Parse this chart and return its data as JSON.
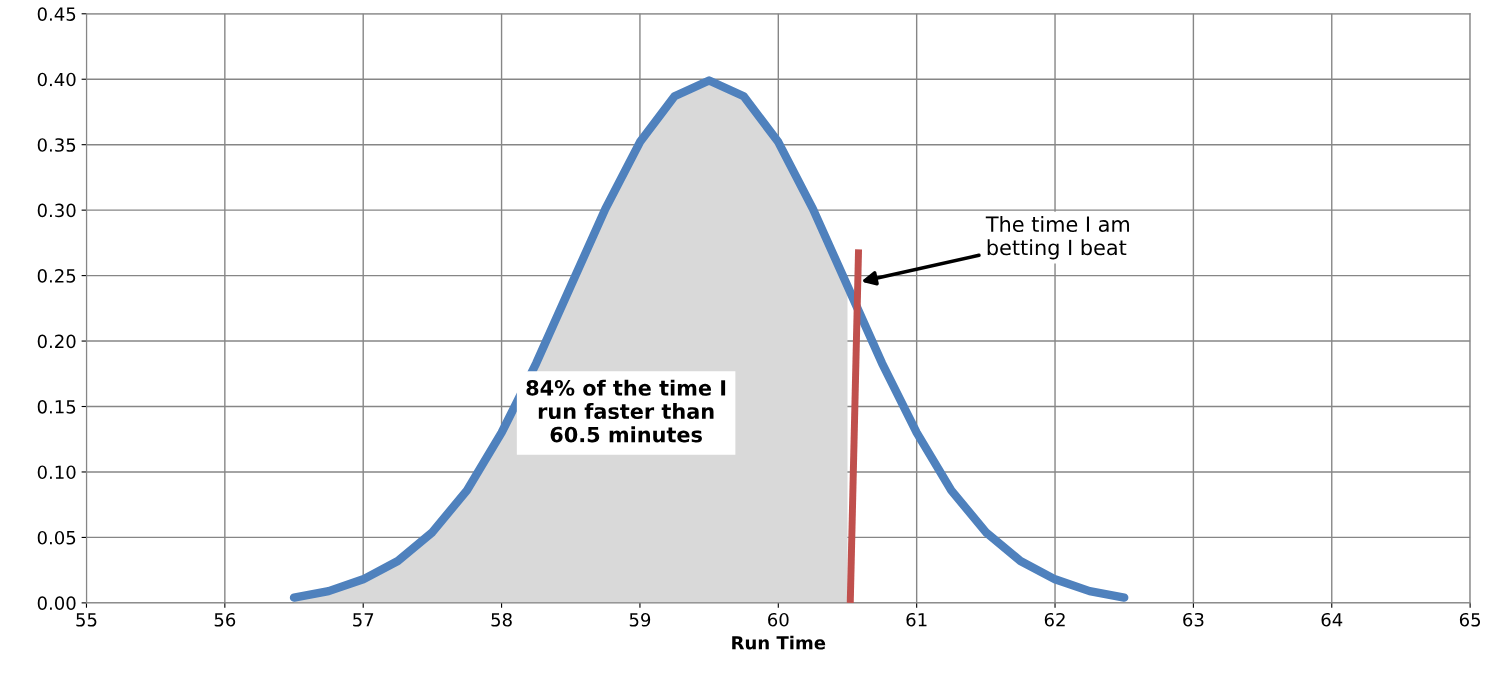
{
  "chart_data": {
    "type": "line",
    "xlabel": "Run Time",
    "xlim": [
      55,
      65
    ],
    "xticks": [
      55,
      56,
      57,
      58,
      59,
      60,
      61,
      62,
      63,
      64,
      65
    ],
    "ylim": [
      0,
      0.45
    ],
    "yticks": [
      {
        "value": 0,
        "label": "0.00"
      },
      {
        "value": 0.05,
        "label": "0.05"
      },
      {
        "value": 0.1,
        "label": "0.10"
      },
      {
        "value": 0.15,
        "label": "0.15"
      },
      {
        "value": 0.2,
        "label": "0.20"
      },
      {
        "value": 0.25,
        "label": "0.25"
      },
      {
        "value": 0.3,
        "label": "0.30"
      },
      {
        "value": 0.35,
        "label": "0.35"
      },
      {
        "value": 0.4,
        "label": "0.40"
      },
      {
        "value": 0.45,
        "label": "0.45"
      }
    ],
    "grid": true,
    "series": [
      {
        "type": "area",
        "color": "#d9d9d9",
        "x": [
          56.5,
          56.75,
          57,
          57.25,
          57.5,
          57.75,
          58,
          58.25,
          58.5,
          58.75,
          59,
          59.25,
          59.5,
          59.75,
          60,
          60.25,
          60.5
        ],
        "values": [
          0.004,
          0.009,
          0.018,
          0.032,
          0.054,
          0.086,
          0.13,
          0.183,
          0.242,
          0.301,
          0.352,
          0.387,
          0.399,
          0.387,
          0.352,
          0.301,
          0.242
        ]
      },
      {
        "color": "#4f81bd",
        "x": [
          56.5,
          56.75,
          57,
          57.25,
          57.5,
          57.75,
          58,
          58.25,
          58.5,
          58.75,
          59,
          59.25,
          59.5,
          59.75,
          60,
          60.25,
          60.5,
          60.75,
          61,
          61.25,
          61.5,
          61.75,
          62,
          62.25,
          62.5
        ],
        "values": [
          0.004,
          0.009,
          0.018,
          0.032,
          0.054,
          0.086,
          0.13,
          0.183,
          0.242,
          0.301,
          0.352,
          0.387,
          0.399,
          0.387,
          0.352,
          0.301,
          0.242,
          0.183,
          0.13,
          0.086,
          0.054,
          0.032,
          0.018,
          0.009,
          0.004
        ]
      },
      {
        "type": "line",
        "color": "#c0504d",
        "x": [
          60.52,
          60.58
        ],
        "values": [
          0,
          0.27
        ]
      }
    ],
    "annotations": [
      "The time I am\nbetting I beat",
      "84% of the time I\nrun faster than\n60.5 minutes"
    ]
  }
}
